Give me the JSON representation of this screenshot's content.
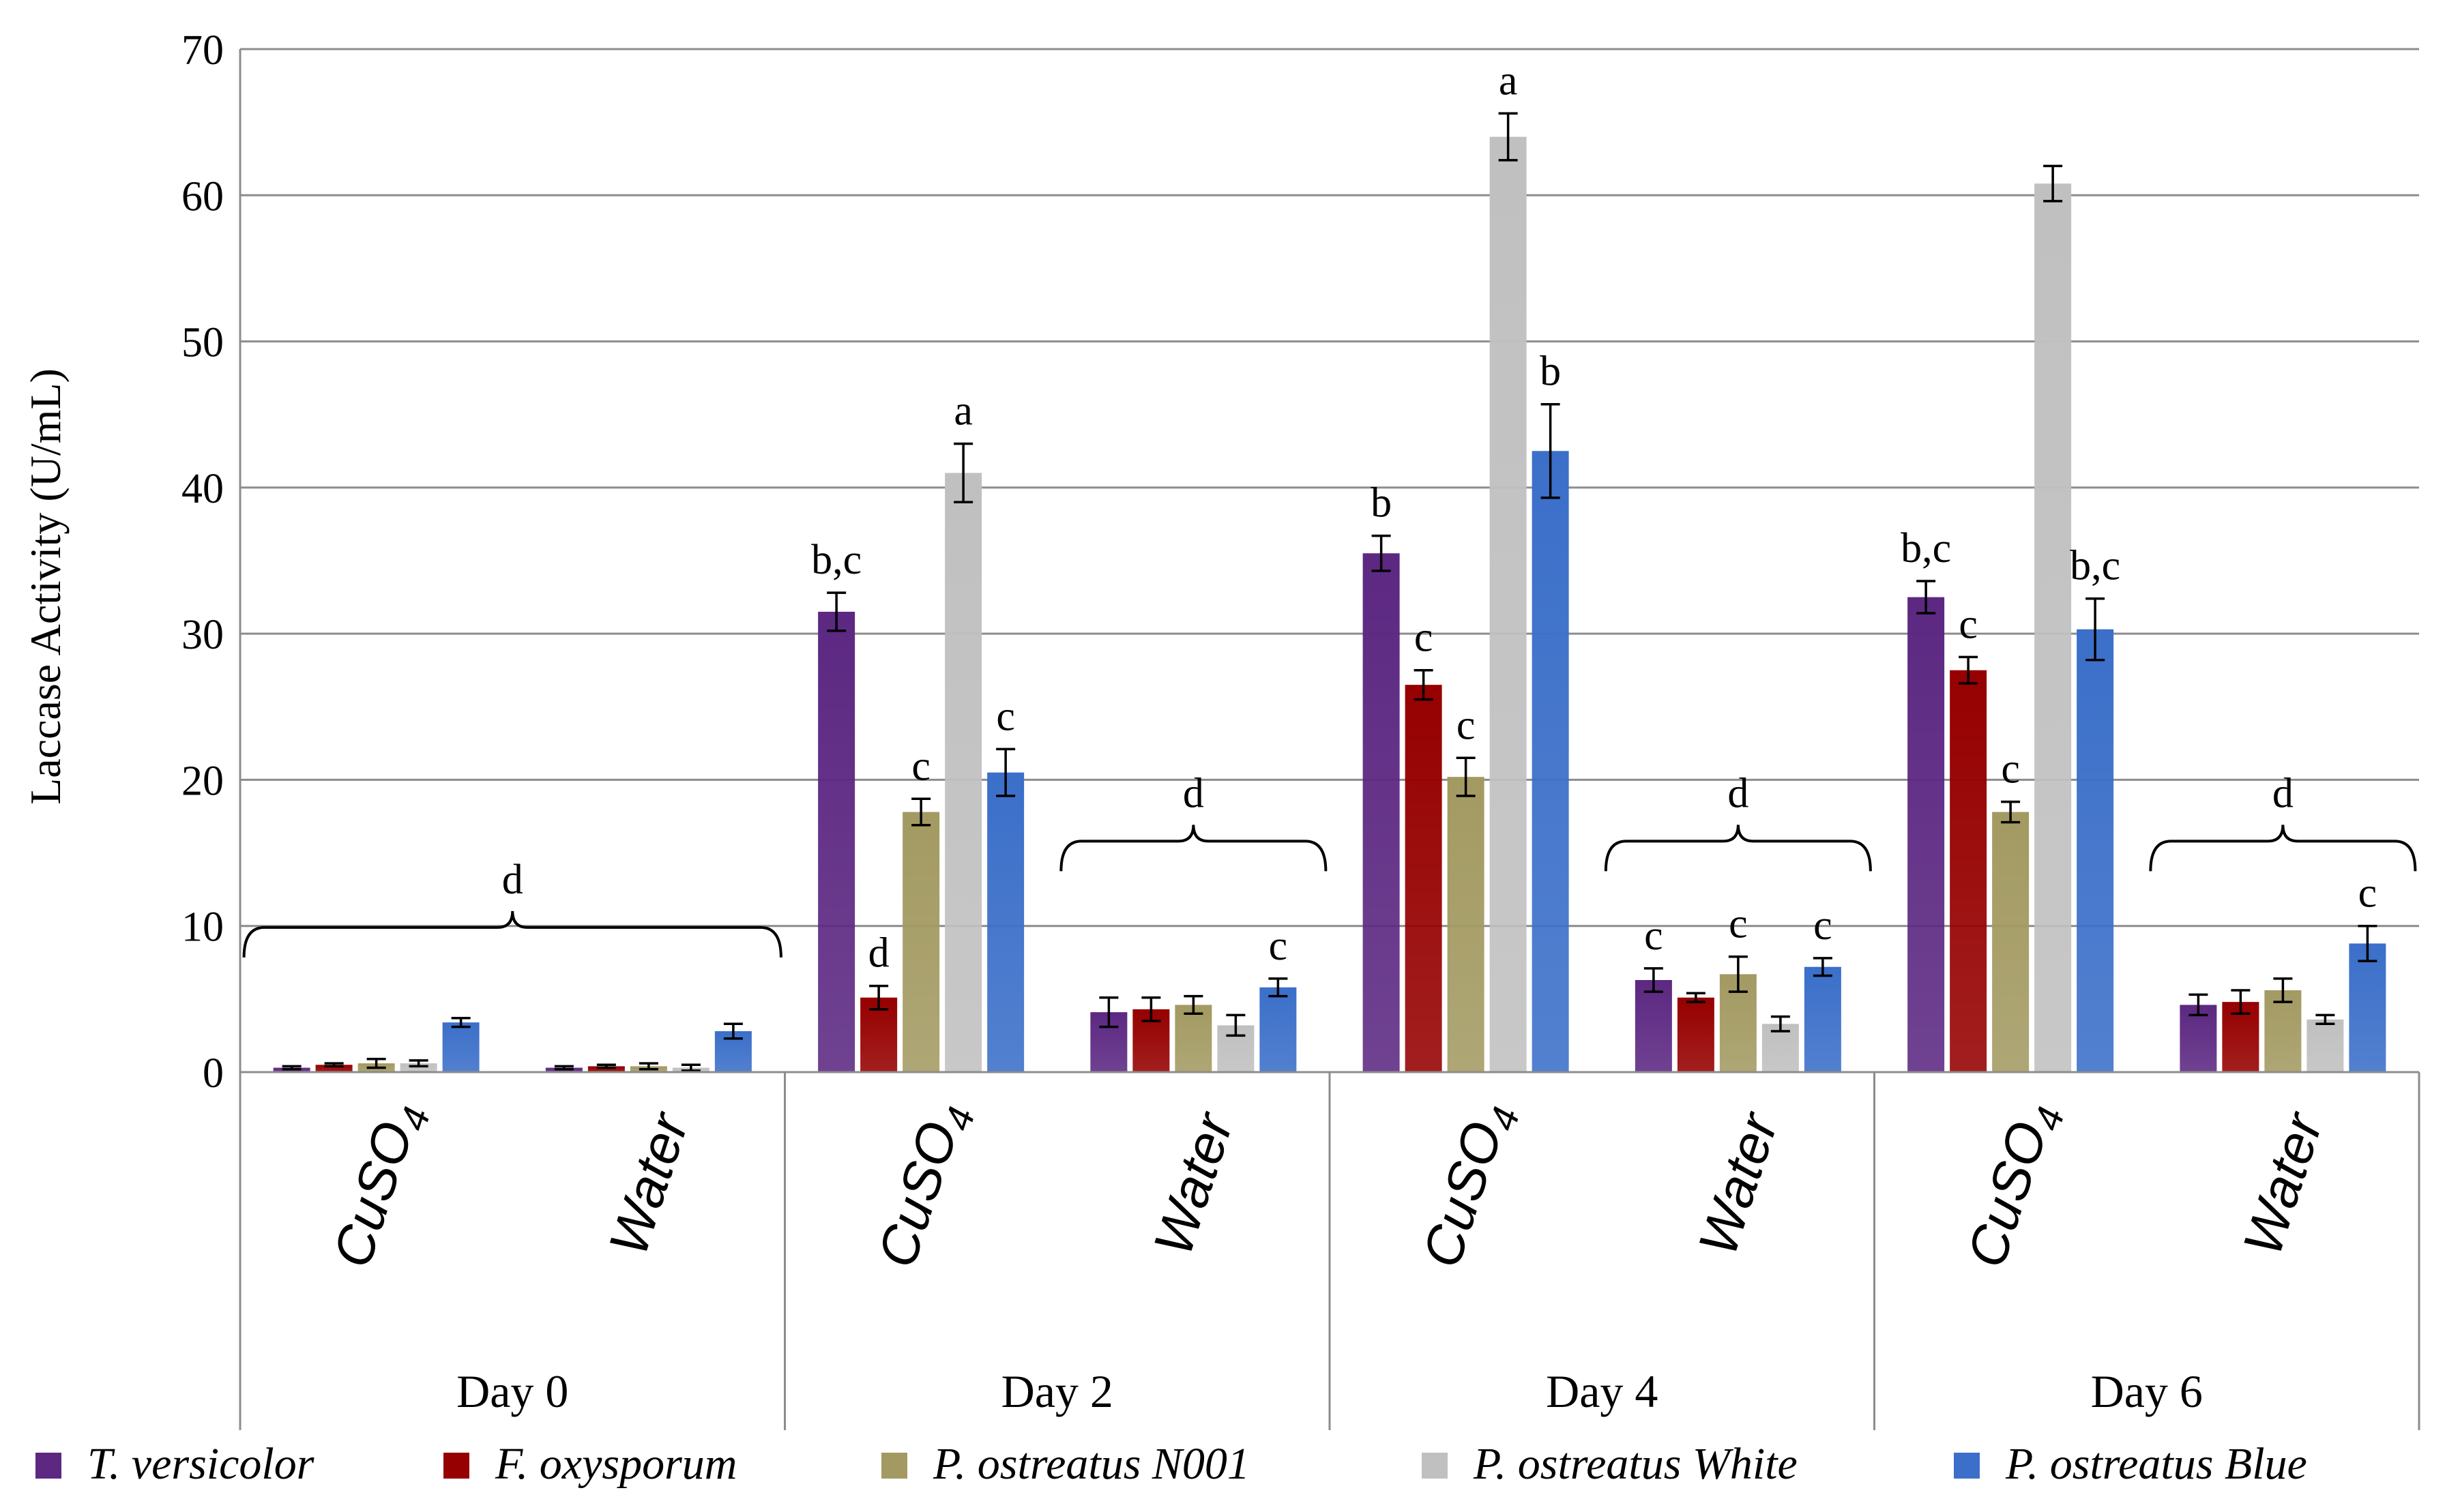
{
  "chart_data": {
    "type": "bar",
    "title": "",
    "xlabel": "",
    "ylabel": "Laccase Activity (U/mL)",
    "ylim": [
      0,
      70
    ],
    "yticks": [
      "0",
      "10",
      "20",
      "30",
      "40",
      "50",
      "60",
      "70"
    ],
    "grid": true,
    "legend_position": "bottom",
    "day_labels": [
      "Day 0",
      "Day 2",
      "Day 4",
      "Day 6"
    ],
    "subscript_4": "4",
    "categories": [
      {
        "day": "Day 0",
        "treatment": "CuSO",
        "subscript": "4"
      },
      {
        "day": "Day 0",
        "treatment": "Water",
        "subscript": ""
      },
      {
        "day": "Day 2",
        "treatment": "CuSO",
        "subscript": "4"
      },
      {
        "day": "Day 2",
        "treatment": "Water",
        "subscript": ""
      },
      {
        "day": "Day 4",
        "treatment": "CuSO",
        "subscript": "4"
      },
      {
        "day": "Day 4",
        "treatment": "Water",
        "subscript": ""
      },
      {
        "day": "Day 6",
        "treatment": "CuSO",
        "subscript": "4"
      },
      {
        "day": "Day 6",
        "treatment": "Water",
        "subscript": ""
      }
    ],
    "series": [
      {
        "name": "T. versicolor",
        "color": "#5c2882",
        "values": [
          0.3,
          0.3,
          31.5,
          4.1,
          35.5,
          6.3,
          32.5,
          4.6
        ],
        "errors": [
          0.1,
          0.1,
          1.3,
          1.0,
          1.2,
          0.8,
          1.1,
          0.7
        ]
      },
      {
        "name": "F. oxysporum",
        "color": "#960000",
        "values": [
          0.5,
          0.4,
          5.1,
          4.3,
          26.5,
          5.1,
          27.5,
          4.8
        ],
        "errors": [
          0.1,
          0.1,
          0.8,
          0.8,
          1.0,
          0.3,
          0.9,
          0.8
        ]
      },
      {
        "name": "P. ostreatus N001",
        "color": "#a39a62",
        "values": [
          0.6,
          0.4,
          17.8,
          4.6,
          20.2,
          6.7,
          17.8,
          5.6
        ],
        "errors": [
          0.3,
          0.2,
          0.9,
          0.6,
          1.3,
          1.2,
          0.7,
          0.8
        ]
      },
      {
        "name": "P. ostreatus White",
        "color": "#c0c0c0",
        "values": [
          0.6,
          0.3,
          41.0,
          3.2,
          64.0,
          3.3,
          60.8,
          3.6
        ],
        "errors": [
          0.2,
          0.2,
          2.0,
          0.7,
          1.6,
          0.5,
          1.2,
          0.3
        ]
      },
      {
        "name": "P. ostreatus Blue",
        "color": "#3b6fc9",
        "values": [
          3.4,
          2.8,
          20.5,
          5.8,
          42.5,
          7.2,
          30.3,
          8.8
        ],
        "errors": [
          0.3,
          0.5,
          1.6,
          0.6,
          3.2,
          0.6,
          2.1,
          1.2
        ]
      }
    ],
    "annotations": [
      {
        "category": 2,
        "series": 0,
        "text": "b,c"
      },
      {
        "category": 2,
        "series": 1,
        "text": "d"
      },
      {
        "category": 2,
        "series": 2,
        "text": "c"
      },
      {
        "category": 2,
        "series": 3,
        "text": "a"
      },
      {
        "category": 2,
        "series": 4,
        "text": "c"
      },
      {
        "category": 3,
        "series": 4,
        "text": "c"
      },
      {
        "category": 4,
        "series": 0,
        "text": "b"
      },
      {
        "category": 4,
        "series": 1,
        "text": "c"
      },
      {
        "category": 4,
        "series": 2,
        "text": "c"
      },
      {
        "category": 4,
        "series": 3,
        "text": "a"
      },
      {
        "category": 4,
        "series": 4,
        "text": "b"
      },
      {
        "category": 5,
        "series": 0,
        "text": "c"
      },
      {
        "category": 5,
        "series": 2,
        "text": "c"
      },
      {
        "category": 5,
        "series": 4,
        "text": "c"
      },
      {
        "category": 6,
        "series": 0,
        "text": "b,c"
      },
      {
        "category": 6,
        "series": 1,
        "text": "c"
      },
      {
        "category": 6,
        "series": 2,
        "text": "c"
      },
      {
        "category": 6,
        "series": 4,
        "text": "b,c"
      },
      {
        "category": 7,
        "series": 4,
        "text": "c"
      }
    ],
    "brackets": [
      {
        "from_category": 0,
        "to_category": 1,
        "text": "d"
      },
      {
        "from_category": 3,
        "to_category": 3,
        "text": "d"
      },
      {
        "from_category": 5,
        "to_category": 5,
        "text": "d"
      },
      {
        "from_category": 7,
        "to_category": 7,
        "text": "d"
      }
    ]
  }
}
